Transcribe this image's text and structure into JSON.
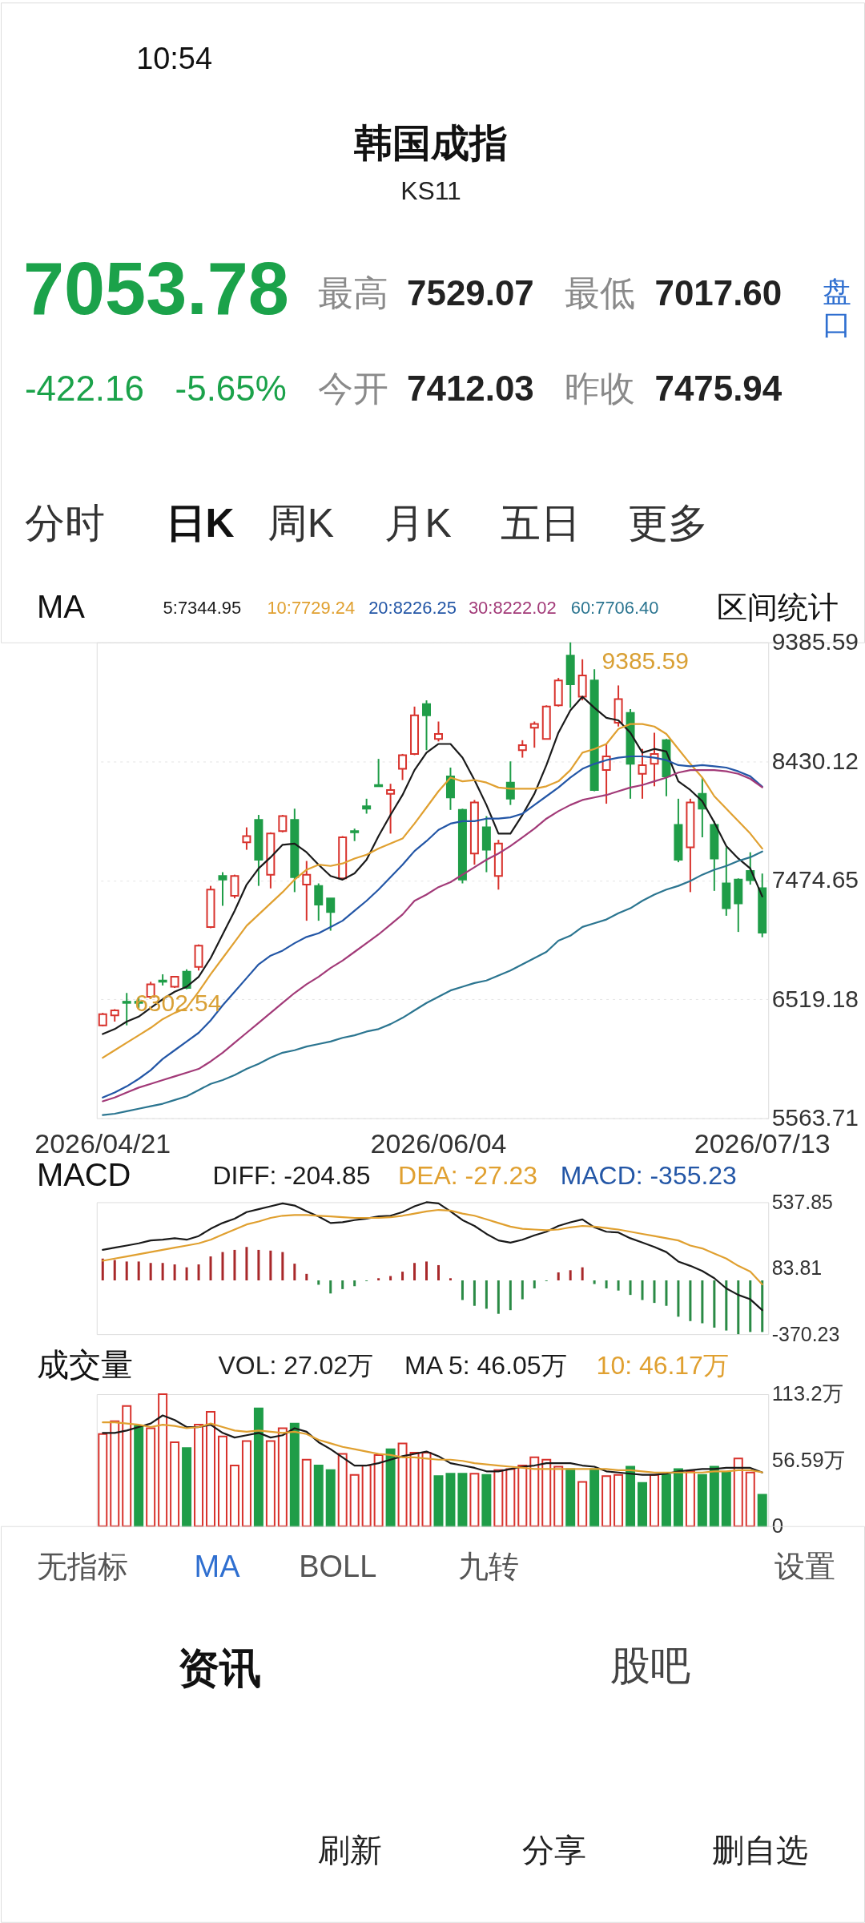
{
  "chart_data": [
    {
      "type": "other",
      "title": "韩国成指",
      "subtitle": "KS11",
      "annotations": [
        "10:54",
        "7053.78",
        "最高",
        "7529.07",
        "最低",
        "7017.60",
        "-422.16",
        "-5.65%",
        "今开",
        "7412.03",
        "昨收",
        "7475.94",
        "盘口",
        "分时",
        "日K",
        "周K",
        "月K",
        "五日",
        "更多"
      ]
    },
    {
      "type": "candlestick",
      "legend_title": "MA",
      "legend": "top",
      "grid": "y",
      "categories": [
        "2026/04/21",
        null,
        null,
        null,
        null,
        null,
        null,
        null,
        null,
        null,
        null,
        null,
        null,
        null,
        null,
        null,
        null,
        null,
        null,
        null,
        null,
        null,
        null,
        null,
        null,
        null,
        null,
        null,
        "2026/06/04",
        null,
        null,
        null,
        null,
        null,
        null,
        null,
        null,
        null,
        null,
        null,
        null,
        null,
        null,
        null,
        null,
        null,
        null,
        null,
        null,
        null,
        null,
        null,
        null,
        null,
        null,
        "2026/07/13"
      ],
      "ohlc": [
        [
          6310,
          6410,
          6302.54,
          6400
        ],
        [
          6390,
          6440,
          6340,
          6430
        ],
        [
          6500,
          6570,
          6310,
          6490
        ],
        [
          6500,
          6540,
          6450,
          6490
        ],
        [
          6540,
          6660,
          6530,
          6640
        ],
        [
          6670,
          6720,
          6630,
          6660
        ],
        [
          6620,
          6700,
          6610,
          6700
        ],
        [
          6740,
          6760,
          6600,
          6610
        ],
        [
          6780,
          6960,
          6750,
          6950
        ],
        [
          7100,
          7430,
          7090,
          7400
        ],
        [
          7510,
          7540,
          7270,
          7480
        ],
        [
          7350,
          7520,
          7330,
          7510
        ],
        [
          7780,
          7900,
          7720,
          7830
        ],
        [
          7960,
          8000,
          7430,
          7640
        ],
        [
          7520,
          7860,
          7410,
          7850
        ],
        [
          7870,
          8000,
          7860,
          7990
        ],
        [
          7960,
          8050,
          7380,
          7500
        ],
        [
          7440,
          7630,
          7150,
          7520
        ],
        [
          7430,
          7450,
          7150,
          7280
        ],
        [
          7330,
          7330,
          7070,
          7220
        ],
        [
          7490,
          7830,
          7480,
          7820
        ],
        [
          7870,
          7890,
          7790,
          7860
        ],
        [
          8070,
          8130,
          8010,
          8050
        ],
        [
          8240,
          8450,
          8230,
          8230
        ],
        [
          8170,
          8250,
          7850,
          8200
        ],
        [
          8370,
          8490,
          8280,
          8480
        ],
        [
          8490,
          8870,
          8480,
          8800
        ],
        [
          8890,
          8920,
          8520,
          8800
        ],
        [
          8610,
          8750,
          8590,
          8650
        ],
        [
          8310,
          8380,
          8040,
          8140
        ],
        [
          8040,
          8050,
          7450,
          7480
        ],
        [
          7690,
          8120,
          7600,
          8100
        ],
        [
          7900,
          7990,
          7540,
          7720
        ],
        [
          7510,
          7800,
          7400,
          7770
        ],
        [
          8260,
          8430,
          8080,
          8130
        ],
        [
          8520,
          8600,
          8460,
          8560
        ],
        [
          8700,
          8750,
          8540,
          8730
        ],
        [
          8610,
          8880,
          8610,
          8870
        ],
        [
          8880,
          9100,
          8870,
          9080
        ],
        [
          9280,
          9385.59,
          8860,
          9050
        ],
        [
          8950,
          9250,
          8920,
          9120
        ],
        [
          9080,
          9170,
          8190,
          8200
        ],
        [
          8360,
          8570,
          8090,
          8470
        ],
        [
          8740,
          9040,
          8710,
          8930
        ],
        [
          8820,
          8850,
          8130,
          8410
        ],
        [
          8330,
          8530,
          8130,
          8400
        ],
        [
          8410,
          8660,
          8230,
          8490
        ],
        [
          8600,
          8610,
          8150,
          8310
        ],
        [
          7920,
          8130,
          7620,
          7640
        ],
        [
          7740,
          8130,
          7380,
          8100
        ],
        [
          8170,
          8300,
          7820,
          8050
        ],
        [
          7920,
          7950,
          7390,
          7650
        ],
        [
          7450,
          7740,
          7190,
          7250
        ],
        [
          7480,
          7490,
          7060,
          7290
        ],
        [
          7550,
          7700,
          7440,
          7475.94
        ],
        [
          7412.03,
          7529.07,
          7017.6,
          7053.78
        ]
      ],
      "colors": [
        "#d8322c",
        "#d8322c",
        "#1f9d48",
        "#1f9d48",
        "#d8322c",
        "#1f9d48",
        "#d8322c",
        "#1f9d48",
        "#d8322c",
        "#d8322c",
        "#1f9d48",
        "#d8322c",
        "#d8322c",
        "#1f9d48",
        "#d8322c",
        "#d8322c",
        "#1f9d48",
        "#d8322c",
        "#1f9d48",
        "#1f9d48",
        "#d8322c",
        "#1f9d48",
        "#1f9d48",
        "#1f9d48",
        "#d8322c",
        "#d8322c",
        "#d8322c",
        "#1f9d48",
        "#d8322c",
        "#1f9d48",
        "#1f9d48",
        "#d8322c",
        "#1f9d48",
        "#d8322c",
        "#1f9d48",
        "#d8322c",
        "#d8322c",
        "#d8322c",
        "#d8322c",
        "#1f9d48",
        "#d8322c",
        "#1f9d48",
        "#d8322c",
        "#d8322c",
        "#1f9d48",
        "#d8322c",
        "#d8322c",
        "#1f9d48",
        "#1f9d48",
        "#d8322c",
        "#1f9d48",
        "#1f9d48",
        "#1f9d48",
        "#1f9d48",
        "#1f9d48",
        "#1f9d48"
      ],
      "series": [
        {
          "name": "5:7344.95",
          "type": "line",
          "color": "#1a1a1a",
          "values": [
            6240,
            6280,
            6340,
            6380,
            6450,
            6520,
            6580,
            6620,
            6700,
            6850,
            7040,
            7230,
            7440,
            7570,
            7660,
            7760,
            7770,
            7700,
            7600,
            7510,
            7480,
            7530,
            7640,
            7830,
            8000,
            8160,
            8360,
            8500,
            8570,
            8570,
            8460,
            8280,
            8080,
            7850,
            7850,
            8000,
            8170,
            8400,
            8660,
            8840,
            8950,
            8860,
            8780,
            8760,
            8660,
            8500,
            8530,
            8510,
            8270,
            8200,
            8110,
            7940,
            7750,
            7650,
            7570,
            7344.95
          ]
        },
        {
          "name": "10:7729.24",
          "type": "line",
          "color": "#e0a030",
          "values": [
            6050,
            6110,
            6170,
            6230,
            6290,
            6360,
            6410,
            6450,
            6580,
            6720,
            6850,
            6980,
            7110,
            7200,
            7290,
            7380,
            7480,
            7560,
            7600,
            7590,
            7610,
            7650,
            7680,
            7730,
            7770,
            7810,
            7930,
            8060,
            8190,
            8300,
            8270,
            8280,
            8260,
            8220,
            8210,
            8210,
            8210,
            8230,
            8270,
            8360,
            8500,
            8530,
            8570,
            8690,
            8730,
            8730,
            8710,
            8650,
            8530,
            8410,
            8300,
            8150,
            8050,
            7950,
            7850,
            7729.24
          ]
        },
        {
          "name": "20:8226.25",
          "type": "line",
          "color": "#2356a6",
          "values": [
            5730,
            5770,
            5820,
            5880,
            5950,
            6040,
            6110,
            6180,
            6250,
            6350,
            6470,
            6580,
            6690,
            6800,
            6870,
            6910,
            6970,
            7020,
            7050,
            7100,
            7150,
            7230,
            7310,
            7400,
            7500,
            7600,
            7710,
            7790,
            7880,
            7930,
            7950,
            7950,
            7970,
            7970,
            7980,
            8010,
            8080,
            8150,
            8220,
            8300,
            8370,
            8410,
            8440,
            8460,
            8470,
            8470,
            8460,
            8440,
            8400,
            8390,
            8400,
            8390,
            8380,
            8350,
            8310,
            8226.25
          ]
        },
        {
          "name": "30:8222.02",
          "type": "line",
          "color": "#a23a78",
          "values": [
            5700,
            5730,
            5770,
            5810,
            5840,
            5870,
            5900,
            5930,
            5960,
            6020,
            6090,
            6170,
            6250,
            6330,
            6410,
            6490,
            6570,
            6640,
            6700,
            6770,
            6830,
            6900,
            6970,
            7040,
            7120,
            7200,
            7310,
            7360,
            7420,
            7460,
            7520,
            7580,
            7640,
            7690,
            7750,
            7820,
            7890,
            7970,
            8030,
            8080,
            8120,
            8140,
            8160,
            8190,
            8220,
            8240,
            8270,
            8300,
            8340,
            8360,
            8360,
            8360,
            8350,
            8330,
            8290,
            8222.02
          ]
        },
        {
          "name": "60:7706.40",
          "type": "line",
          "color": "#2b7590",
          "values": [
            5590,
            5600,
            5620,
            5640,
            5660,
            5680,
            5710,
            5740,
            5790,
            5840,
            5870,
            5910,
            5960,
            6000,
            6050,
            6090,
            6110,
            6140,
            6160,
            6180,
            6210,
            6230,
            6260,
            6280,
            6320,
            6370,
            6430,
            6490,
            6540,
            6590,
            6620,
            6650,
            6670,
            6710,
            6750,
            6800,
            6850,
            6900,
            6990,
            7030,
            7100,
            7130,
            7160,
            7210,
            7250,
            7310,
            7360,
            7400,
            7430,
            7470,
            7520,
            7560,
            7590,
            7630,
            7660,
            7706.4
          ]
        }
      ],
      "ylim": [
        5563.71,
        9385.59
      ],
      "yticks": [
        9385.59,
        8430.12,
        7474.65,
        6519.18,
        5563.71
      ],
      "annotations": [
        "9385.59",
        {
          "text": "6302.54",
          "x": "2026/04/21",
          "y": 6302.54
        },
        "区间统计"
      ]
    },
    {
      "type": "bar",
      "legend_title": "MACD",
      "legend": "top",
      "tick_labels": "y",
      "categories": [
        null,
        null,
        null,
        null,
        null,
        null,
        null,
        null,
        null,
        null,
        null,
        null,
        null,
        null,
        null,
        null,
        null,
        null,
        null,
        null,
        null,
        null,
        null,
        null,
        null,
        null,
        null,
        null,
        null,
        null,
        null,
        null,
        null,
        null,
        null,
        null,
        null,
        null,
        null,
        null,
        null,
        null,
        null,
        null,
        null,
        null,
        null,
        null,
        null,
        null,
        null,
        null,
        null,
        null,
        null,
        null
      ],
      "series": [
        {
          "name": "DIFF: -204.85",
          "type": "line",
          "color": "#1a1a1a",
          "values": [
            210,
            225,
            240,
            255,
            275,
            280,
            290,
            280,
            305,
            355,
            395,
            425,
            470,
            490,
            510,
            530,
            515,
            475,
            440,
            395,
            400,
            415,
            425,
            440,
            445,
            470,
            510,
            537.85,
            530,
            475,
            415,
            375,
            320,
            275,
            260,
            280,
            310,
            335,
            375,
            400,
            420,
            365,
            335,
            330,
            290,
            260,
            230,
            195,
            130,
            100,
            65,
            15,
            -55,
            -100,
            -130,
            -204.85
          ]
        },
        {
          "name": "DEA: -27.23",
          "type": "line",
          "color": "#e0a030",
          "values": [
            135,
            150,
            165,
            180,
            195,
            210,
            225,
            240,
            255,
            280,
            315,
            350,
            385,
            405,
            430,
            445,
            450,
            450,
            445,
            440,
            435,
            430,
            430,
            430,
            435,
            445,
            460,
            475,
            485,
            480,
            460,
            445,
            420,
            395,
            370,
            355,
            350,
            345,
            350,
            365,
            375,
            370,
            360,
            350,
            335,
            320,
            305,
            290,
            275,
            240,
            220,
            185,
            150,
            100,
            60,
            -27.23
          ]
        },
        {
          "type": "bar",
          "values": [
            150,
            140,
            130,
            130,
            120,
            120,
            110,
            90,
            110,
            165,
            195,
            210,
            230,
            210,
            205,
            195,
            115,
            45,
            -30,
            -90,
            -60,
            -40,
            -5,
            15,
            30,
            60,
            120,
            130,
            105,
            15,
            -135,
            -175,
            -195,
            -230,
            -205,
            -130,
            -55,
            -5,
            55,
            70,
            90,
            -25,
            -55,
            -70,
            -100,
            -135,
            -155,
            -175,
            -250,
            -280,
            -295,
            -325,
            -345,
            -370.23,
            -355,
            -355.23
          ],
          "colors": [
            "#a8282a",
            "#a8282a",
            "#a8282a",
            "#a8282a",
            "#a8282a",
            "#a8282a",
            "#a8282a",
            "#a8282a",
            "#a8282a",
            "#a8282a",
            "#a8282a",
            "#a8282a",
            "#a8282a",
            "#a8282a",
            "#a8282a",
            "#a8282a",
            "#a8282a",
            "#a8282a",
            "#2a8a45",
            "#2a8a45",
            "#2a8a45",
            "#2a8a45",
            "#2a8a45",
            "#a8282a",
            "#a8282a",
            "#a8282a",
            "#a8282a",
            "#a8282a",
            "#a8282a",
            "#a8282a",
            "#2a8a45",
            "#2a8a45",
            "#2a8a45",
            "#2a8a45",
            "#2a8a45",
            "#2a8a45",
            "#2a8a45",
            "#2a8a45",
            "#a8282a",
            "#a8282a",
            "#a8282a",
            "#2a8a45",
            "#2a8a45",
            "#2a8a45",
            "#2a8a45",
            "#2a8a45",
            "#2a8a45",
            "#2a8a45",
            "#2a8a45",
            "#2a8a45",
            "#2a8a45",
            "#2a8a45",
            "#2a8a45",
            "#2a8a45",
            "#2a8a45",
            "#2a8a45"
          ]
        }
      ],
      "ylim": [
        -370.23,
        537.85
      ],
      "yticks": [
        537.85,
        83.81,
        -370.23
      ],
      "annotations": [
        "MACD: -355.23"
      ]
    },
    {
      "type": "bar",
      "legend_title": "成交量",
      "legend": "top",
      "tick_labels": "y",
      "categories": [
        null,
        null,
        null,
        null,
        null,
        null,
        null,
        null,
        null,
        null,
        null,
        null,
        null,
        null,
        null,
        null,
        null,
        null,
        null,
        null,
        null,
        null,
        null,
        null,
        null,
        null,
        null,
        null,
        null,
        null,
        null,
        null,
        null,
        null,
        null,
        null,
        null,
        null,
        null,
        null,
        null,
        null,
        null,
        null,
        null,
        null,
        null,
        null,
        null,
        null,
        null,
        null,
        null,
        null,
        null,
        null
      ],
      "series": [
        {
          "type": "bar",
          "values": [
            79,
            90,
            103,
            86,
            84,
            113.2,
            72,
            67,
            87,
            98,
            77,
            52,
            73,
            101,
            73,
            84,
            88,
            57,
            52,
            48,
            62,
            44,
            52,
            61,
            66,
            71,
            63,
            63,
            43,
            45,
            45,
            45,
            44,
            48,
            49,
            52,
            59,
            57,
            51,
            49,
            38,
            49,
            43,
            44,
            51,
            37,
            44,
            44,
            49,
            47,
            44,
            51,
            46,
            58,
            46,
            27.02
          ],
          "colors": [
            "#d8322c",
            "#d8322c",
            "#d8322c",
            "#1f9d48",
            "#d8322c",
            "#d8322c",
            "#d8322c",
            "#1f9d48",
            "#d8322c",
            "#d8322c",
            "#d8322c",
            "#d8322c",
            "#d8322c",
            "#1f9d48",
            "#d8322c",
            "#d8322c",
            "#1f9d48",
            "#d8322c",
            "#1f9d48",
            "#1f9d48",
            "#d8322c",
            "#d8322c",
            "#d8322c",
            "#d8322c",
            "#1f9d48",
            "#d8322c",
            "#d8322c",
            "#d8322c",
            "#1f9d48",
            "#1f9d48",
            "#1f9d48",
            "#d8322c",
            "#1f9d48",
            "#d8322c",
            "#d8322c",
            "#d8322c",
            "#d8322c",
            "#d8322c",
            "#d8322c",
            "#1f9d48",
            "#d8322c",
            "#1f9d48",
            "#d8322c",
            "#d8322c",
            "#1f9d48",
            "#1f9d48",
            "#d8322c",
            "#1f9d48",
            "#1f9d48",
            "#d8322c",
            "#1f9d48",
            "#1f9d48",
            "#1f9d48",
            "#d8322c",
            "#d8322c",
            "#1f9d48"
          ]
        },
        {
          "name": "MA 5: 46.05万",
          "type": "line",
          "color": "#1a1a1a",
          "values": [
            80,
            80,
            82,
            85,
            88,
            95,
            91,
            85,
            85,
            87,
            80,
            76,
            78,
            80,
            76,
            78,
            84,
            81,
            72,
            66,
            59,
            52,
            52,
            54,
            57,
            60,
            62,
            64,
            60,
            54,
            52,
            50,
            47,
            47,
            49,
            51,
            52,
            54,
            54,
            54,
            52,
            51,
            47,
            46,
            45,
            44,
            44,
            45,
            47,
            48,
            49,
            49,
            50,
            50,
            50,
            46.05
          ]
        },
        {
          "name": "10: 46.17万",
          "type": "line",
          "color": "#e0a030",
          "values": [
            89,
            89,
            88,
            87,
            85,
            87,
            86,
            84,
            85,
            88,
            85,
            82,
            81,
            82,
            81,
            80,
            81,
            79,
            74,
            71,
            68,
            66,
            64,
            62,
            61,
            59,
            59,
            58,
            57,
            57,
            56,
            54,
            53,
            52,
            51,
            50,
            49,
            49,
            49,
            49,
            49,
            49,
            49,
            48,
            48,
            47,
            46,
            46,
            46,
            46,
            46,
            47,
            47,
            48,
            48,
            46.17
          ]
        }
      ],
      "ylim": [
        0,
        113.2
      ],
      "yticks": [
        {
          "value": 113.2,
          "label": "113.2万"
        },
        {
          "value": 56.59,
          "label": "56.59万"
        },
        0
      ],
      "annotations": [
        "VOL: 27.02万"
      ]
    },
    {
      "type": "other",
      "annotations": [
        "无指标",
        "MA",
        "BOLL",
        "九转",
        "设置",
        "资讯",
        "股吧",
        "刷新",
        "分享",
        "删自选"
      ]
    }
  ]
}
